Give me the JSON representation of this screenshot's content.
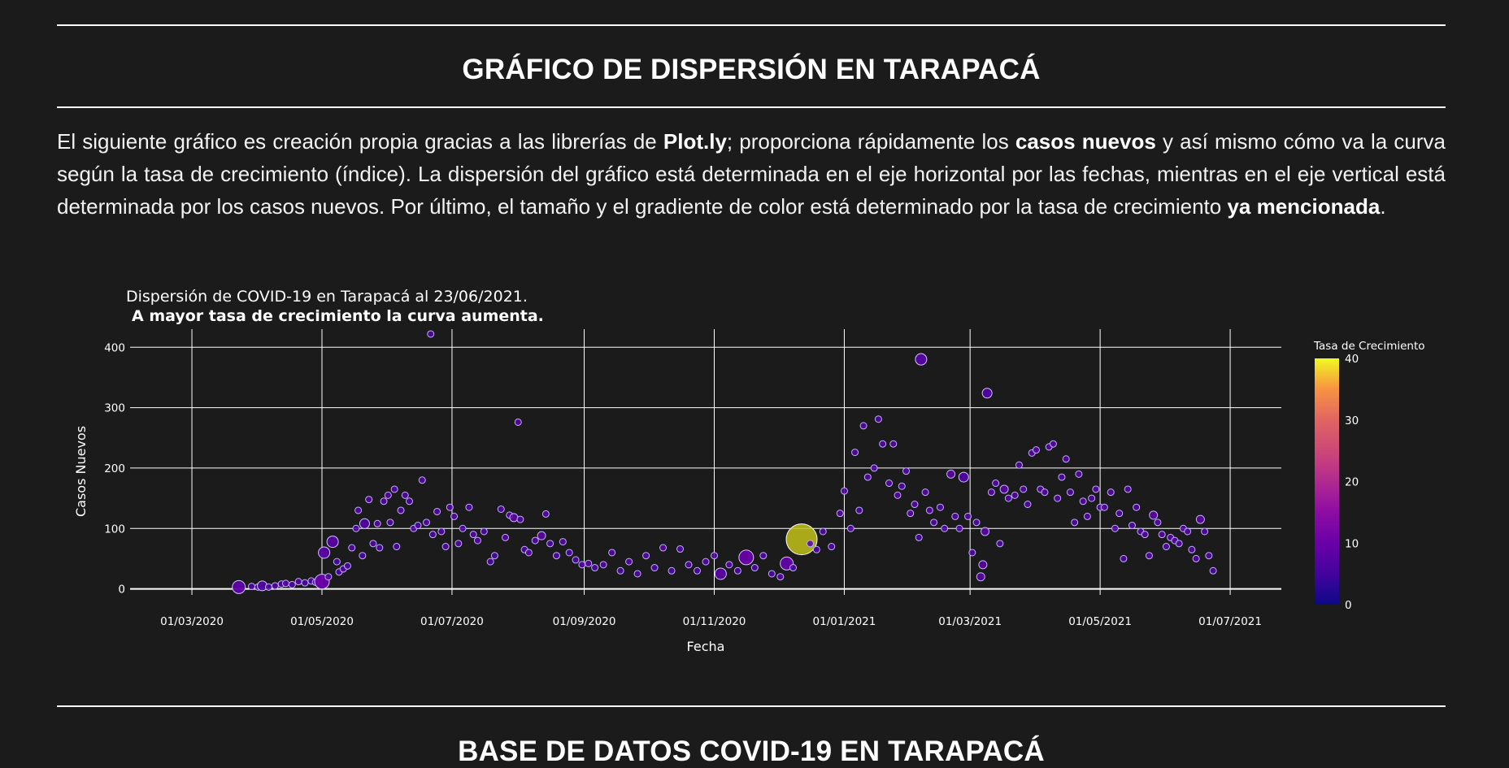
{
  "section1": {
    "title": "GRÁFICO DE DISPERSIÓN EN TARAPACÁ",
    "intro": {
      "p1": "El siguiente gráfico es creación propia gracias a las librerías de ",
      "b1": "Plot.ly",
      "p2": "; proporciona rápidamente los ",
      "b2": "casos nuevos",
      "p3": " y así mismo cómo va la curva según la tasa de crecimiento (índice). La dispersión del gráfico está determinada en el eje horizontal por las fechas, mientras en el eje vertical está determinada por los casos nuevos. Por último, el tamaño y el gradiente de color está determinado por la tasa de crecimiento ",
      "b3": "ya mencionada",
      "p4": "."
    }
  },
  "section2": {
    "title": "BASE DE DATOS COVID-19 EN TARAPACÁ"
  },
  "chart_data": {
    "type": "scatter",
    "title": "Dispersión de COVID-19 en Tarapacá al 23/06/2021.",
    "subtitle": "A mayor tasa de crecimiento la curva aumenta.",
    "xlabel": "Fecha",
    "ylabel": "Casos Nuevos",
    "xlim": [
      "2020-02-01",
      "2021-07-25"
    ],
    "ylim": [
      -10,
      430
    ],
    "yticks": [
      0,
      100,
      200,
      300,
      400
    ],
    "xticks": [
      "2020-03-01",
      "2020-05-01",
      "2020-07-01",
      "2020-09-01",
      "2020-11-01",
      "2021-01-01",
      "2021-03-01",
      "2021-05-01",
      "2021-07-01"
    ],
    "xtick_labels": [
      "01/03/2020",
      "01/05/2020",
      "01/07/2020",
      "01/09/2020",
      "01/11/2020",
      "01/01/2021",
      "01/03/2021",
      "01/05/2021",
      "01/07/2021"
    ],
    "grid": true,
    "colorbar": {
      "title": "Tasa de Crecimiento",
      "min": 0,
      "max": 40,
      "ticks": [
        0,
        10,
        20,
        30,
        40
      ],
      "colorscale": "plasma"
    },
    "points": [
      {
        "x": "2020-03-23",
        "y": 3,
        "r": 8
      },
      {
        "x": "2020-03-29",
        "y": 4,
        "r": 3
      },
      {
        "x": "2020-04-01",
        "y": 3,
        "r": 3
      },
      {
        "x": "2020-04-03",
        "y": 5,
        "r": 6
      },
      {
        "x": "2020-04-06",
        "y": 3,
        "r": 3
      },
      {
        "x": "2020-04-09",
        "y": 5,
        "r": 4
      },
      {
        "x": "2020-04-12",
        "y": 8,
        "r": 3
      },
      {
        "x": "2020-04-14",
        "y": 9,
        "r": 4
      },
      {
        "x": "2020-04-17",
        "y": 7,
        "r": 3
      },
      {
        "x": "2020-04-20",
        "y": 12,
        "r": 4
      },
      {
        "x": "2020-04-23",
        "y": 10,
        "r": 3
      },
      {
        "x": "2020-04-26",
        "y": 13,
        "r": 3
      },
      {
        "x": "2020-04-28",
        "y": 11,
        "r": 3
      },
      {
        "x": "2020-05-01",
        "y": 12,
        "r": 9
      },
      {
        "x": "2020-05-02",
        "y": 60,
        "r": 7
      },
      {
        "x": "2020-05-04",
        "y": 20,
        "r": 3
      },
      {
        "x": "2020-05-06",
        "y": 78,
        "r": 7
      },
      {
        "x": "2020-05-08",
        "y": 45,
        "r": 3
      },
      {
        "x": "2020-05-09",
        "y": 28,
        "r": 3
      },
      {
        "x": "2020-05-11",
        "y": 33,
        "r": 3
      },
      {
        "x": "2020-05-13",
        "y": 38,
        "r": 3
      },
      {
        "x": "2020-05-15",
        "y": 68,
        "r": 4
      },
      {
        "x": "2020-05-17",
        "y": 100,
        "r": 3
      },
      {
        "x": "2020-05-18",
        "y": 130,
        "r": 4
      },
      {
        "x": "2020-05-20",
        "y": 55,
        "r": 3
      },
      {
        "x": "2020-05-21",
        "y": 108,
        "r": 6
      },
      {
        "x": "2020-05-23",
        "y": 148,
        "r": 4
      },
      {
        "x": "2020-05-25",
        "y": 75,
        "r": 3
      },
      {
        "x": "2020-05-27",
        "y": 108,
        "r": 4
      },
      {
        "x": "2020-05-28",
        "y": 68,
        "r": 3
      },
      {
        "x": "2020-05-30",
        "y": 145,
        "r": 4
      },
      {
        "x": "2020-06-01",
        "y": 155,
        "r": 4
      },
      {
        "x": "2020-06-02",
        "y": 110,
        "r": 3
      },
      {
        "x": "2020-06-04",
        "y": 165,
        "r": 4
      },
      {
        "x": "2020-06-05",
        "y": 70,
        "r": 3
      },
      {
        "x": "2020-06-07",
        "y": 130,
        "r": 4
      },
      {
        "x": "2020-06-09",
        "y": 155,
        "r": 4
      },
      {
        "x": "2020-06-11",
        "y": 145,
        "r": 3
      },
      {
        "x": "2020-06-13",
        "y": 100,
        "r": 4
      },
      {
        "x": "2020-06-15",
        "y": 105,
        "r": 3
      },
      {
        "x": "2020-06-17",
        "y": 180,
        "r": 4
      },
      {
        "x": "2020-06-19",
        "y": 110,
        "r": 4
      },
      {
        "x": "2020-06-21",
        "y": 422,
        "r": 3
      },
      {
        "x": "2020-06-22",
        "y": 90,
        "r": 3
      },
      {
        "x": "2020-06-24",
        "y": 128,
        "r": 4
      },
      {
        "x": "2020-06-26",
        "y": 95,
        "r": 4
      },
      {
        "x": "2020-06-28",
        "y": 70,
        "r": 4
      },
      {
        "x": "2020-06-30",
        "y": 135,
        "r": 4
      },
      {
        "x": "2020-07-02",
        "y": 120,
        "r": 4
      },
      {
        "x": "2020-07-04",
        "y": 75,
        "r": 4
      },
      {
        "x": "2020-07-06",
        "y": 100,
        "r": 3
      },
      {
        "x": "2020-07-09",
        "y": 135,
        "r": 4
      },
      {
        "x": "2020-07-11",
        "y": 90,
        "r": 4
      },
      {
        "x": "2020-07-13",
        "y": 80,
        "r": 4
      },
      {
        "x": "2020-07-16",
        "y": 95,
        "r": 3
      },
      {
        "x": "2020-07-19",
        "y": 45,
        "r": 3
      },
      {
        "x": "2020-07-21",
        "y": 55,
        "r": 3
      },
      {
        "x": "2020-07-24",
        "y": 132,
        "r": 4
      },
      {
        "x": "2020-07-26",
        "y": 85,
        "r": 4
      },
      {
        "x": "2020-07-28",
        "y": 122,
        "r": 4
      },
      {
        "x": "2020-07-30",
        "y": 118,
        "r": 5
      },
      {
        "x": "2020-08-01",
        "y": 276,
        "r": 4
      },
      {
        "x": "2020-08-02",
        "y": 115,
        "r": 4
      },
      {
        "x": "2020-08-04",
        "y": 65,
        "r": 3
      },
      {
        "x": "2020-08-06",
        "y": 60,
        "r": 4
      },
      {
        "x": "2020-08-09",
        "y": 80,
        "r": 4
      },
      {
        "x": "2020-08-12",
        "y": 88,
        "r": 5
      },
      {
        "x": "2020-08-14",
        "y": 124,
        "r": 4
      },
      {
        "x": "2020-08-16",
        "y": 75,
        "r": 3
      },
      {
        "x": "2020-08-19",
        "y": 55,
        "r": 4
      },
      {
        "x": "2020-08-22",
        "y": 78,
        "r": 4
      },
      {
        "x": "2020-08-25",
        "y": 60,
        "r": 3
      },
      {
        "x": "2020-08-28",
        "y": 48,
        "r": 3
      },
      {
        "x": "2020-08-31",
        "y": 40,
        "r": 4
      },
      {
        "x": "2020-09-03",
        "y": 42,
        "r": 4
      },
      {
        "x": "2020-09-06",
        "y": 35,
        "r": 3
      },
      {
        "x": "2020-09-10",
        "y": 40,
        "r": 4
      },
      {
        "x": "2020-09-14",
        "y": 60,
        "r": 4
      },
      {
        "x": "2020-09-18",
        "y": 30,
        "r": 3
      },
      {
        "x": "2020-09-22",
        "y": 45,
        "r": 4
      },
      {
        "x": "2020-09-26",
        "y": 25,
        "r": 3
      },
      {
        "x": "2020-09-30",
        "y": 55,
        "r": 4
      },
      {
        "x": "2020-10-04",
        "y": 35,
        "r": 3
      },
      {
        "x": "2020-10-08",
        "y": 68,
        "r": 4
      },
      {
        "x": "2020-10-12",
        "y": 30,
        "r": 3
      },
      {
        "x": "2020-10-16",
        "y": 66,
        "r": 4
      },
      {
        "x": "2020-10-20",
        "y": 40,
        "r": 4
      },
      {
        "x": "2020-10-24",
        "y": 30,
        "r": 3
      },
      {
        "x": "2020-10-28",
        "y": 45,
        "r": 4
      },
      {
        "x": "2020-11-01",
        "y": 55,
        "r": 4
      },
      {
        "x": "2020-11-04",
        "y": 25,
        "r": 7
      },
      {
        "x": "2020-11-08",
        "y": 40,
        "r": 4
      },
      {
        "x": "2020-11-12",
        "y": 30,
        "r": 3
      },
      {
        "x": "2020-11-16",
        "y": 52,
        "r": 9
      },
      {
        "x": "2020-11-20",
        "y": 35,
        "r": 3
      },
      {
        "x": "2020-11-24",
        "y": 55,
        "r": 4
      },
      {
        "x": "2020-11-28",
        "y": 25,
        "r": 3
      },
      {
        "x": "2020-12-02",
        "y": 20,
        "r": 4
      },
      {
        "x": "2020-12-05",
        "y": 42,
        "r": 8
      },
      {
        "x": "2020-12-08",
        "y": 35,
        "r": 3
      },
      {
        "x": "2020-12-12",
        "y": 82,
        "r": 19
      },
      {
        "x": "2020-12-16",
        "y": 75,
        "r": 4
      },
      {
        "x": "2020-12-19",
        "y": 65,
        "r": 3
      },
      {
        "x": "2020-12-22",
        "y": 95,
        "r": 4
      },
      {
        "x": "2020-12-26",
        "y": 70,
        "r": 4
      },
      {
        "x": "2020-12-30",
        "y": 125,
        "r": 4
      },
      {
        "x": "2021-01-01",
        "y": 162,
        "r": 4
      },
      {
        "x": "2021-01-04",
        "y": 100,
        "r": 4
      },
      {
        "x": "2021-01-06",
        "y": 226,
        "r": 4
      },
      {
        "x": "2021-01-08",
        "y": 130,
        "r": 3
      },
      {
        "x": "2021-01-10",
        "y": 270,
        "r": 4
      },
      {
        "x": "2021-01-12",
        "y": 185,
        "r": 4
      },
      {
        "x": "2021-01-15",
        "y": 200,
        "r": 4
      },
      {
        "x": "2021-01-17",
        "y": 281,
        "r": 4
      },
      {
        "x": "2021-01-19",
        "y": 240,
        "r": 4
      },
      {
        "x": "2021-01-22",
        "y": 175,
        "r": 4
      },
      {
        "x": "2021-01-24",
        "y": 240,
        "r": 4
      },
      {
        "x": "2021-01-26",
        "y": 155,
        "r": 4
      },
      {
        "x": "2021-01-28",
        "y": 170,
        "r": 3
      },
      {
        "x": "2021-01-30",
        "y": 195,
        "r": 4
      },
      {
        "x": "2021-02-01",
        "y": 125,
        "r": 4
      },
      {
        "x": "2021-02-03",
        "y": 140,
        "r": 4
      },
      {
        "x": "2021-02-05",
        "y": 85,
        "r": 3
      },
      {
        "x": "2021-02-06",
        "y": 380,
        "r": 7
      },
      {
        "x": "2021-02-08",
        "y": 160,
        "r": 4
      },
      {
        "x": "2021-02-10",
        "y": 130,
        "r": 4
      },
      {
        "x": "2021-02-12",
        "y": 110,
        "r": 4
      },
      {
        "x": "2021-02-15",
        "y": 135,
        "r": 4
      },
      {
        "x": "2021-02-17",
        "y": 100,
        "r": 4
      },
      {
        "x": "2021-02-20",
        "y": 190,
        "r": 5
      },
      {
        "x": "2021-02-22",
        "y": 120,
        "r": 4
      },
      {
        "x": "2021-02-24",
        "y": 100,
        "r": 4
      },
      {
        "x": "2021-02-26",
        "y": 185,
        "r": 6
      },
      {
        "x": "2021-02-28",
        "y": 120,
        "r": 4
      },
      {
        "x": "2021-03-02",
        "y": 60,
        "r": 4
      },
      {
        "x": "2021-03-04",
        "y": 110,
        "r": 4
      },
      {
        "x": "2021-03-06",
        "y": 20,
        "r": 5
      },
      {
        "x": "2021-03-07",
        "y": 40,
        "r": 5
      },
      {
        "x": "2021-03-08",
        "y": 95,
        "r": 5
      },
      {
        "x": "2021-03-09",
        "y": 324,
        "r": 6
      },
      {
        "x": "2021-03-11",
        "y": 160,
        "r": 4
      },
      {
        "x": "2021-03-13",
        "y": 175,
        "r": 4
      },
      {
        "x": "2021-03-15",
        "y": 75,
        "r": 4
      },
      {
        "x": "2021-03-17",
        "y": 165,
        "r": 5
      },
      {
        "x": "2021-03-19",
        "y": 150,
        "r": 4
      },
      {
        "x": "2021-03-22",
        "y": 155,
        "r": 4
      },
      {
        "x": "2021-03-24",
        "y": 205,
        "r": 4
      },
      {
        "x": "2021-03-26",
        "y": 165,
        "r": 4
      },
      {
        "x": "2021-03-28",
        "y": 140,
        "r": 4
      },
      {
        "x": "2021-03-30",
        "y": 225,
        "r": 4
      },
      {
        "x": "2021-04-01",
        "y": 230,
        "r": 4
      },
      {
        "x": "2021-04-03",
        "y": 165,
        "r": 4
      },
      {
        "x": "2021-04-05",
        "y": 160,
        "r": 4
      },
      {
        "x": "2021-04-07",
        "y": 235,
        "r": 4
      },
      {
        "x": "2021-04-09",
        "y": 240,
        "r": 4
      },
      {
        "x": "2021-04-11",
        "y": 150,
        "r": 4
      },
      {
        "x": "2021-04-13",
        "y": 185,
        "r": 4
      },
      {
        "x": "2021-04-15",
        "y": 215,
        "r": 4
      },
      {
        "x": "2021-04-17",
        "y": 160,
        "r": 4
      },
      {
        "x": "2021-04-19",
        "y": 110,
        "r": 4
      },
      {
        "x": "2021-04-21",
        "y": 190,
        "r": 4
      },
      {
        "x": "2021-04-23",
        "y": 145,
        "r": 4
      },
      {
        "x": "2021-04-25",
        "y": 120,
        "r": 4
      },
      {
        "x": "2021-04-27",
        "y": 150,
        "r": 4
      },
      {
        "x": "2021-04-29",
        "y": 165,
        "r": 4
      },
      {
        "x": "2021-05-01",
        "y": 135,
        "r": 4
      },
      {
        "x": "2021-05-03",
        "y": 135,
        "r": 4
      },
      {
        "x": "2021-05-06",
        "y": 160,
        "r": 4
      },
      {
        "x": "2021-05-08",
        "y": 100,
        "r": 4
      },
      {
        "x": "2021-05-10",
        "y": 125,
        "r": 4
      },
      {
        "x": "2021-05-12",
        "y": 50,
        "r": 3
      },
      {
        "x": "2021-05-14",
        "y": 165,
        "r": 4
      },
      {
        "x": "2021-05-16",
        "y": 105,
        "r": 4
      },
      {
        "x": "2021-05-18",
        "y": 135,
        "r": 4
      },
      {
        "x": "2021-05-20",
        "y": 95,
        "r": 4
      },
      {
        "x": "2021-05-22",
        "y": 90,
        "r": 4
      },
      {
        "x": "2021-05-24",
        "y": 55,
        "r": 4
      },
      {
        "x": "2021-05-26",
        "y": 122,
        "r": 5
      },
      {
        "x": "2021-05-28",
        "y": 110,
        "r": 4
      },
      {
        "x": "2021-05-30",
        "y": 90,
        "r": 4
      },
      {
        "x": "2021-06-01",
        "y": 70,
        "r": 4
      },
      {
        "x": "2021-06-03",
        "y": 85,
        "r": 4
      },
      {
        "x": "2021-06-05",
        "y": 80,
        "r": 4
      },
      {
        "x": "2021-06-07",
        "y": 75,
        "r": 4
      },
      {
        "x": "2021-06-09",
        "y": 100,
        "r": 4
      },
      {
        "x": "2021-06-11",
        "y": 95,
        "r": 4
      },
      {
        "x": "2021-06-13",
        "y": 65,
        "r": 4
      },
      {
        "x": "2021-06-15",
        "y": 50,
        "r": 4
      },
      {
        "x": "2021-06-17",
        "y": 115,
        "r": 5
      },
      {
        "x": "2021-06-19",
        "y": 95,
        "r": 4
      },
      {
        "x": "2021-06-21",
        "y": 55,
        "r": 4
      },
      {
        "x": "2021-06-23",
        "y": 30,
        "r": 3
      }
    ]
  }
}
